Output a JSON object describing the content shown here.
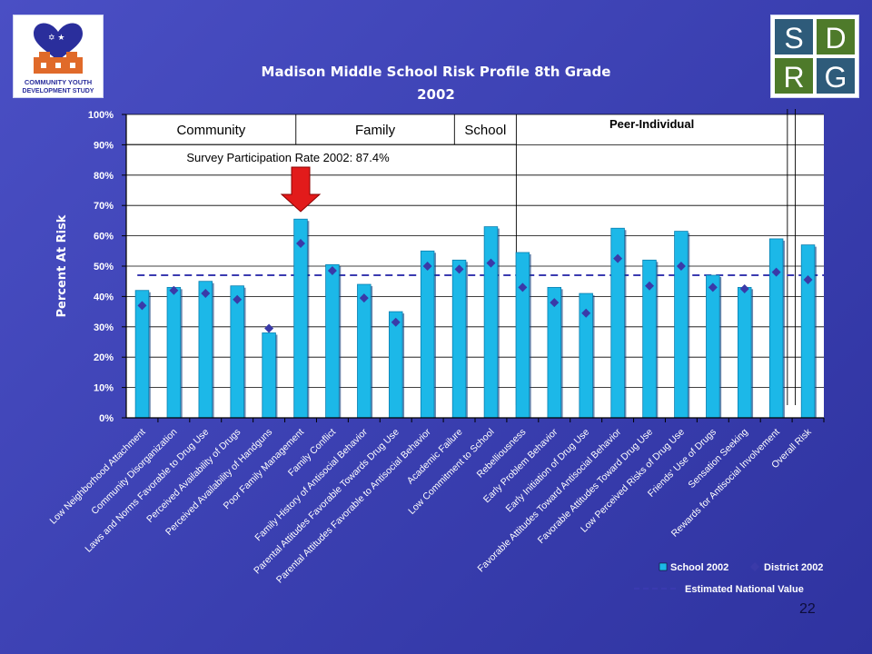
{
  "logos": {
    "left_org_lines": [
      "COMMUNITY YOUTH",
      "DEVELOPMENT STUDY"
    ],
    "right_letters": [
      "S",
      "D",
      "R",
      "G"
    ]
  },
  "page_number": "22",
  "colors": {
    "background": "#3d42b6",
    "plot_bg": "#ffffff",
    "bar": "#1cb8e8",
    "bar_dark": "#0a7fb0",
    "marker": "#3a3aa8",
    "national_line": "#3a3ab0",
    "arrow": "#e21b1b",
    "title": "#ffffff"
  },
  "chart_data": {
    "type": "bar",
    "title": "Madison Middle School Risk Profile 8th Grade",
    "subtitle": "2002",
    "ylabel": "Percent At Risk",
    "xlabel": "",
    "ylim": [
      0,
      100
    ],
    "yticks": [
      "0%",
      "10%",
      "20%",
      "30%",
      "40%",
      "50%",
      "60%",
      "70%",
      "80%",
      "90%",
      "100%"
    ],
    "grid": true,
    "legend_position": "bottom-right",
    "categories": [
      "Low Neighborhood Attachment",
      "Community Disorganization",
      "Laws and Norms Favorable to Drug Use",
      "Perceived Availability of Drugs",
      "Perceived Availability of Handguns",
      "Poor Family Management",
      "Family Conflict",
      "Family History of Antisocial Behavior",
      "Parental Attitudes Favorable Towards Drug Use",
      "Parental Attitudes Favorable to Antisocial Behavior",
      "Academic Failure",
      "Low Commitment to School",
      "Rebelliousness",
      "Early Problem Behavior",
      "Early Initiation of Drug Use",
      "Favorable Attitudes Toward Antisocial Behavior",
      "Favorable Attitudes Toward Drug Use",
      "Low Perceived Risks of Drug Use",
      "Friends' Use of Drugs",
      "Sensation Seeking",
      "Rewards for Antisocial Involvement",
      "Overall Risk"
    ],
    "series": [
      {
        "name": "School 2002",
        "kind": "bar",
        "values": [
          42,
          43,
          45,
          43.5,
          28,
          65.5,
          50.5,
          44,
          35,
          55,
          52,
          63,
          54.5,
          43,
          41,
          62.5,
          52,
          61.5,
          47,
          43,
          59,
          57
        ]
      },
      {
        "name": "District 2002",
        "kind": "marker",
        "values": [
          37,
          42,
          41,
          39,
          29.5,
          57.5,
          48.5,
          39.5,
          31.5,
          50,
          49,
          51,
          43,
          38,
          34.5,
          52.5,
          43.5,
          50,
          43,
          42.5,
          48,
          45.5
        ]
      },
      {
        "name": "Estimated National Value",
        "kind": "dashed-line",
        "value": 47
      }
    ],
    "domains": [
      {
        "label": "Community"
      },
      {
        "label": "Family"
      },
      {
        "label": "School"
      },
      {
        "label": "Peer-Individual"
      }
    ],
    "annotations": {
      "participation": "Survey Participation Rate 2002: 87.4%",
      "arrow_category": "Poor Family Management"
    }
  }
}
